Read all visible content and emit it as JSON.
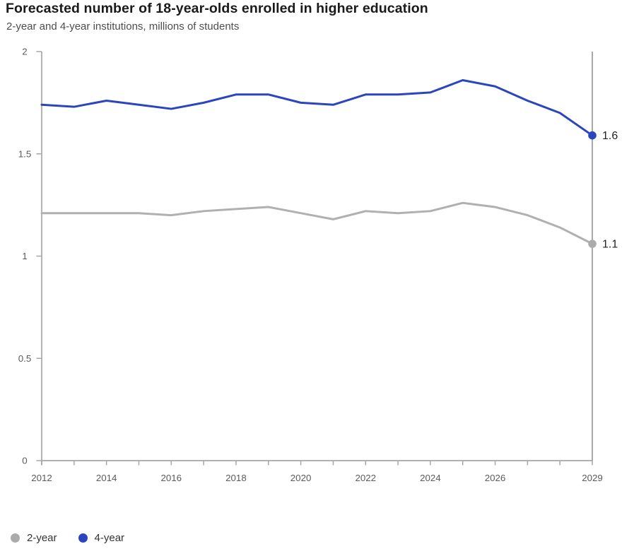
{
  "header": {
    "title": "Forecasted number of 18-year-olds enrolled in higher education",
    "subtitle": "2-year and 4-year institutions, millions of students"
  },
  "legend": {
    "position": "bottom-left",
    "items": [
      {
        "label": "2-year",
        "color": "#ABABAB"
      },
      {
        "label": "4-year",
        "color": "#2B45BE"
      }
    ]
  },
  "chart_data": {
    "type": "line",
    "title": "Forecasted number of 18-year-olds enrolled in higher education",
    "subtitle": "2-year and 4-year institutions, millions of students",
    "xlabel": "",
    "ylabel": "millions of students",
    "grid": false,
    "legend_position": "bottom-left",
    "x": [
      2012,
      2013,
      2014,
      2015,
      2016,
      2017,
      2018,
      2019,
      2020,
      2021,
      2022,
      2023,
      2024,
      2025,
      2026,
      2027,
      2028,
      2029
    ],
    "x_tick_years": [
      2012,
      2014,
      2016,
      2018,
      2020,
      2022,
      2024,
      2026,
      2029
    ],
    "x_tick_labels": [
      "2012",
      "2014",
      "2016",
      "2018",
      "2020",
      "2022",
      "2024",
      "2026",
      "2029"
    ],
    "ylim": [
      0,
      2
    ],
    "y_ticks": [
      0,
      0.5,
      1,
      1.5,
      2
    ],
    "y_tick_labels": [
      "0",
      "0.5",
      "1",
      "1.5",
      "2"
    ],
    "end_marker_year": 2029,
    "series": [
      {
        "name": "2-year",
        "color": "#B0B0B0",
        "dot_color": "#ABABAB",
        "end_label": "1.1",
        "values": [
          1.21,
          1.21,
          1.21,
          1.21,
          1.2,
          1.22,
          1.23,
          1.24,
          1.21,
          1.18,
          1.22,
          1.21,
          1.22,
          1.26,
          1.24,
          1.2,
          1.14,
          1.06
        ]
      },
      {
        "name": "4-year",
        "color": "#2B45BE",
        "dot_color": "#2B45BE",
        "end_label": "1.6",
        "values": [
          1.74,
          1.73,
          1.76,
          1.74,
          1.72,
          1.75,
          1.79,
          1.79,
          1.75,
          1.74,
          1.79,
          1.79,
          1.8,
          1.86,
          1.83,
          1.76,
          1.7,
          1.59
        ]
      }
    ],
    "colors": {
      "axis": "#A6A6A6",
      "tick_text": "#5A5A5A",
      "end_marker_line": "#999999",
      "end_label_text": "#1F1F1F"
    }
  }
}
